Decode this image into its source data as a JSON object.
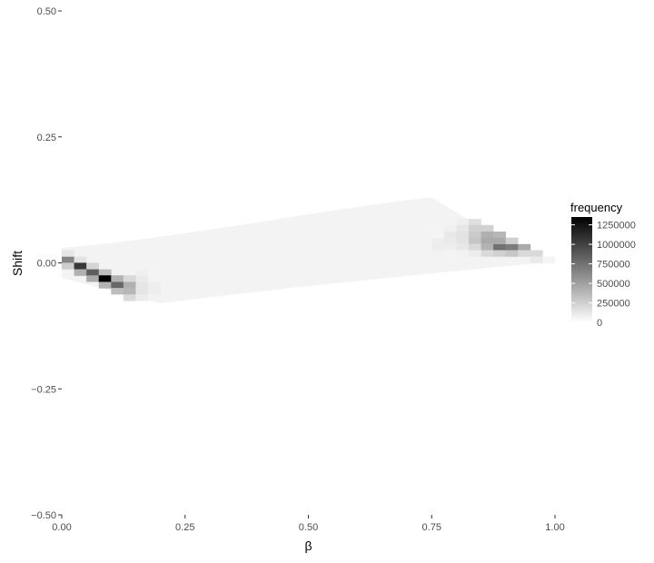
{
  "chart_data": {
    "type": "heatmap",
    "title": "",
    "xlabel": "β",
    "ylabel": "Shift",
    "xlim": [
      0,
      1
    ],
    "ylim": [
      -0.5,
      0.5
    ],
    "x_ticks": [
      "0.00",
      "0.25",
      "0.50",
      "0.75",
      "1.00"
    ],
    "y_ticks": [
      "0.50",
      "0.25",
      "0.00",
      "−0.25",
      "−0.50"
    ],
    "x_tick_values": [
      0,
      0.25,
      0.5,
      0.75,
      1.0
    ],
    "y_tick_values": [
      0.5,
      0.25,
      0,
      -0.25,
      -0.5
    ],
    "grid": false,
    "bin_width_x": 0.025,
    "bin_height_y": 0.0125,
    "legend": {
      "title": "frequency",
      "placement": "right",
      "labels": [
        "1250000",
        "1000000",
        "750000",
        "500000",
        "250000",
        "0"
      ],
      "values": [
        1250000,
        1000000,
        750000,
        500000,
        250000,
        0
      ],
      "max": 1350000,
      "low_color": "#ffffff",
      "high_color": "#000000"
    },
    "cells": [
      [
        0.0125,
        0.019,
        130000
      ],
      [
        0.0125,
        0.006,
        650000
      ],
      [
        0.0125,
        -0.006,
        260000
      ],
      [
        0.0375,
        0.006,
        150000
      ],
      [
        0.0375,
        -0.006,
        1050000
      ],
      [
        0.0375,
        -0.019,
        420000
      ],
      [
        0.0625,
        -0.006,
        220000
      ],
      [
        0.0625,
        -0.019,
        850000
      ],
      [
        0.0625,
        -0.031,
        450000
      ],
      [
        0.0875,
        -0.019,
        350000
      ],
      [
        0.0875,
        -0.031,
        1350000
      ],
      [
        0.0875,
        -0.044,
        400000
      ],
      [
        0.1125,
        -0.031,
        400000
      ],
      [
        0.1125,
        -0.044,
        800000
      ],
      [
        0.1125,
        -0.056,
        350000
      ],
      [
        0.1375,
        -0.031,
        200000
      ],
      [
        0.1375,
        -0.044,
        420000
      ],
      [
        0.1375,
        -0.056,
        380000
      ],
      [
        0.1375,
        -0.069,
        200000
      ],
      [
        0.1625,
        -0.019,
        80000
      ],
      [
        0.1625,
        -0.031,
        110000
      ],
      [
        0.1625,
        -0.044,
        140000
      ],
      [
        0.1625,
        -0.056,
        140000
      ],
      [
        0.1625,
        -0.069,
        100000
      ],
      [
        0.1875,
        -0.031,
        60000
      ],
      [
        0.1875,
        -0.044,
        90000
      ],
      [
        0.1875,
        -0.056,
        90000
      ],
      [
        0.1875,
        -0.069,
        70000
      ],
      [
        0.7625,
        0.044,
        90000
      ],
      [
        0.7625,
        0.031,
        100000
      ],
      [
        0.7625,
        0.019,
        70000
      ],
      [
        0.7625,
        0.056,
        60000
      ],
      [
        0.7875,
        0.069,
        80000
      ],
      [
        0.7875,
        0.056,
        120000
      ],
      [
        0.7875,
        0.044,
        110000
      ],
      [
        0.7875,
        0.031,
        90000
      ],
      [
        0.7875,
        0.019,
        60000
      ],
      [
        0.8125,
        0.081,
        90000
      ],
      [
        0.8125,
        0.069,
        130000
      ],
      [
        0.8125,
        0.056,
        150000
      ],
      [
        0.8125,
        0.044,
        150000
      ],
      [
        0.8125,
        0.031,
        120000
      ],
      [
        0.8125,
        0.019,
        70000
      ],
      [
        0.8375,
        0.081,
        170000
      ],
      [
        0.8375,
        0.069,
        250000
      ],
      [
        0.8375,
        0.056,
        280000
      ],
      [
        0.8375,
        0.044,
        300000
      ],
      [
        0.8375,
        0.031,
        200000
      ],
      [
        0.8375,
        0.019,
        100000
      ],
      [
        0.8625,
        0.069,
        240000
      ],
      [
        0.8625,
        0.056,
        420000
      ],
      [
        0.8625,
        0.044,
        450000
      ],
      [
        0.8625,
        0.031,
        400000
      ],
      [
        0.8625,
        0.019,
        200000
      ],
      [
        0.8875,
        0.056,
        380000
      ],
      [
        0.8875,
        0.044,
        450000
      ],
      [
        0.8875,
        0.031,
        750000
      ],
      [
        0.8875,
        0.019,
        250000
      ],
      [
        0.9125,
        0.044,
        250000
      ],
      [
        0.9125,
        0.031,
        700000
      ],
      [
        0.9125,
        0.019,
        300000
      ],
      [
        0.9375,
        0.031,
        450000
      ],
      [
        0.9375,
        0.019,
        200000
      ],
      [
        0.9625,
        0.019,
        200000
      ],
      [
        0.9625,
        0.006,
        110000
      ],
      [
        0.9875,
        0.006,
        60000
      ]
    ]
  }
}
